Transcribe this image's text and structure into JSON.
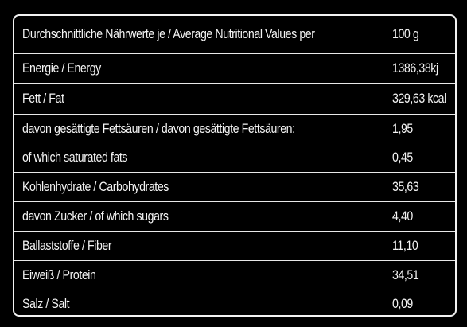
{
  "nutrition_table": {
    "header": {
      "label": "Durchschnittliche Nährwerte je / Average Nutritional Values per",
      "value": "100 g"
    },
    "rows": [
      {
        "label": "Energie / Energy",
        "value": "1386,38kj"
      },
      {
        "label": "Fett / Fat",
        "value": "329,63 kcal"
      },
      {
        "label": "davon gesättigte Fettsäuren / davon gesättigte Fettsäuren:",
        "value": "1,95"
      },
      {
        "label": "of which saturated fats",
        "value": "0,45"
      },
      {
        "label": "Kohlenhydrate / Carbohydrates",
        "value": "35,63"
      },
      {
        "label": "davon Zucker / of which sugars",
        "value": "4,40"
      },
      {
        "label": "Ballaststoffe / Fiber",
        "value": "11,10"
      },
      {
        "label": "Eiweiß / Protein",
        "value": "34,51"
      },
      {
        "label": "Salz / Salt",
        "value": "0,09"
      }
    ]
  }
}
